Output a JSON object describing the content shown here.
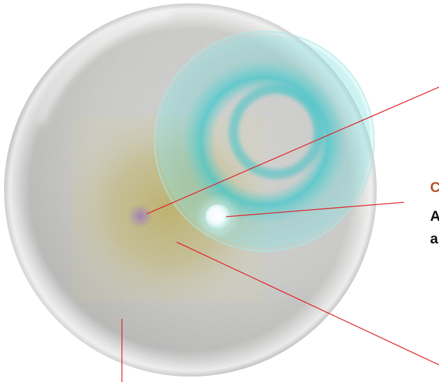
{
  "colors": {
    "pointer_line": "#e0242a",
    "label_title": "#b5552f",
    "label_text": "#111111",
    "outer_sphere": "#bdbdbd",
    "turquoise_shell": "#5ed6d8",
    "nucleus_glow": "#e9f8f7",
    "core_dust": "#b6aa55"
  },
  "labels": {
    "partial_label_title": "C",
    "partial_label_line1": "A",
    "partial_label_line2": "a"
  }
}
